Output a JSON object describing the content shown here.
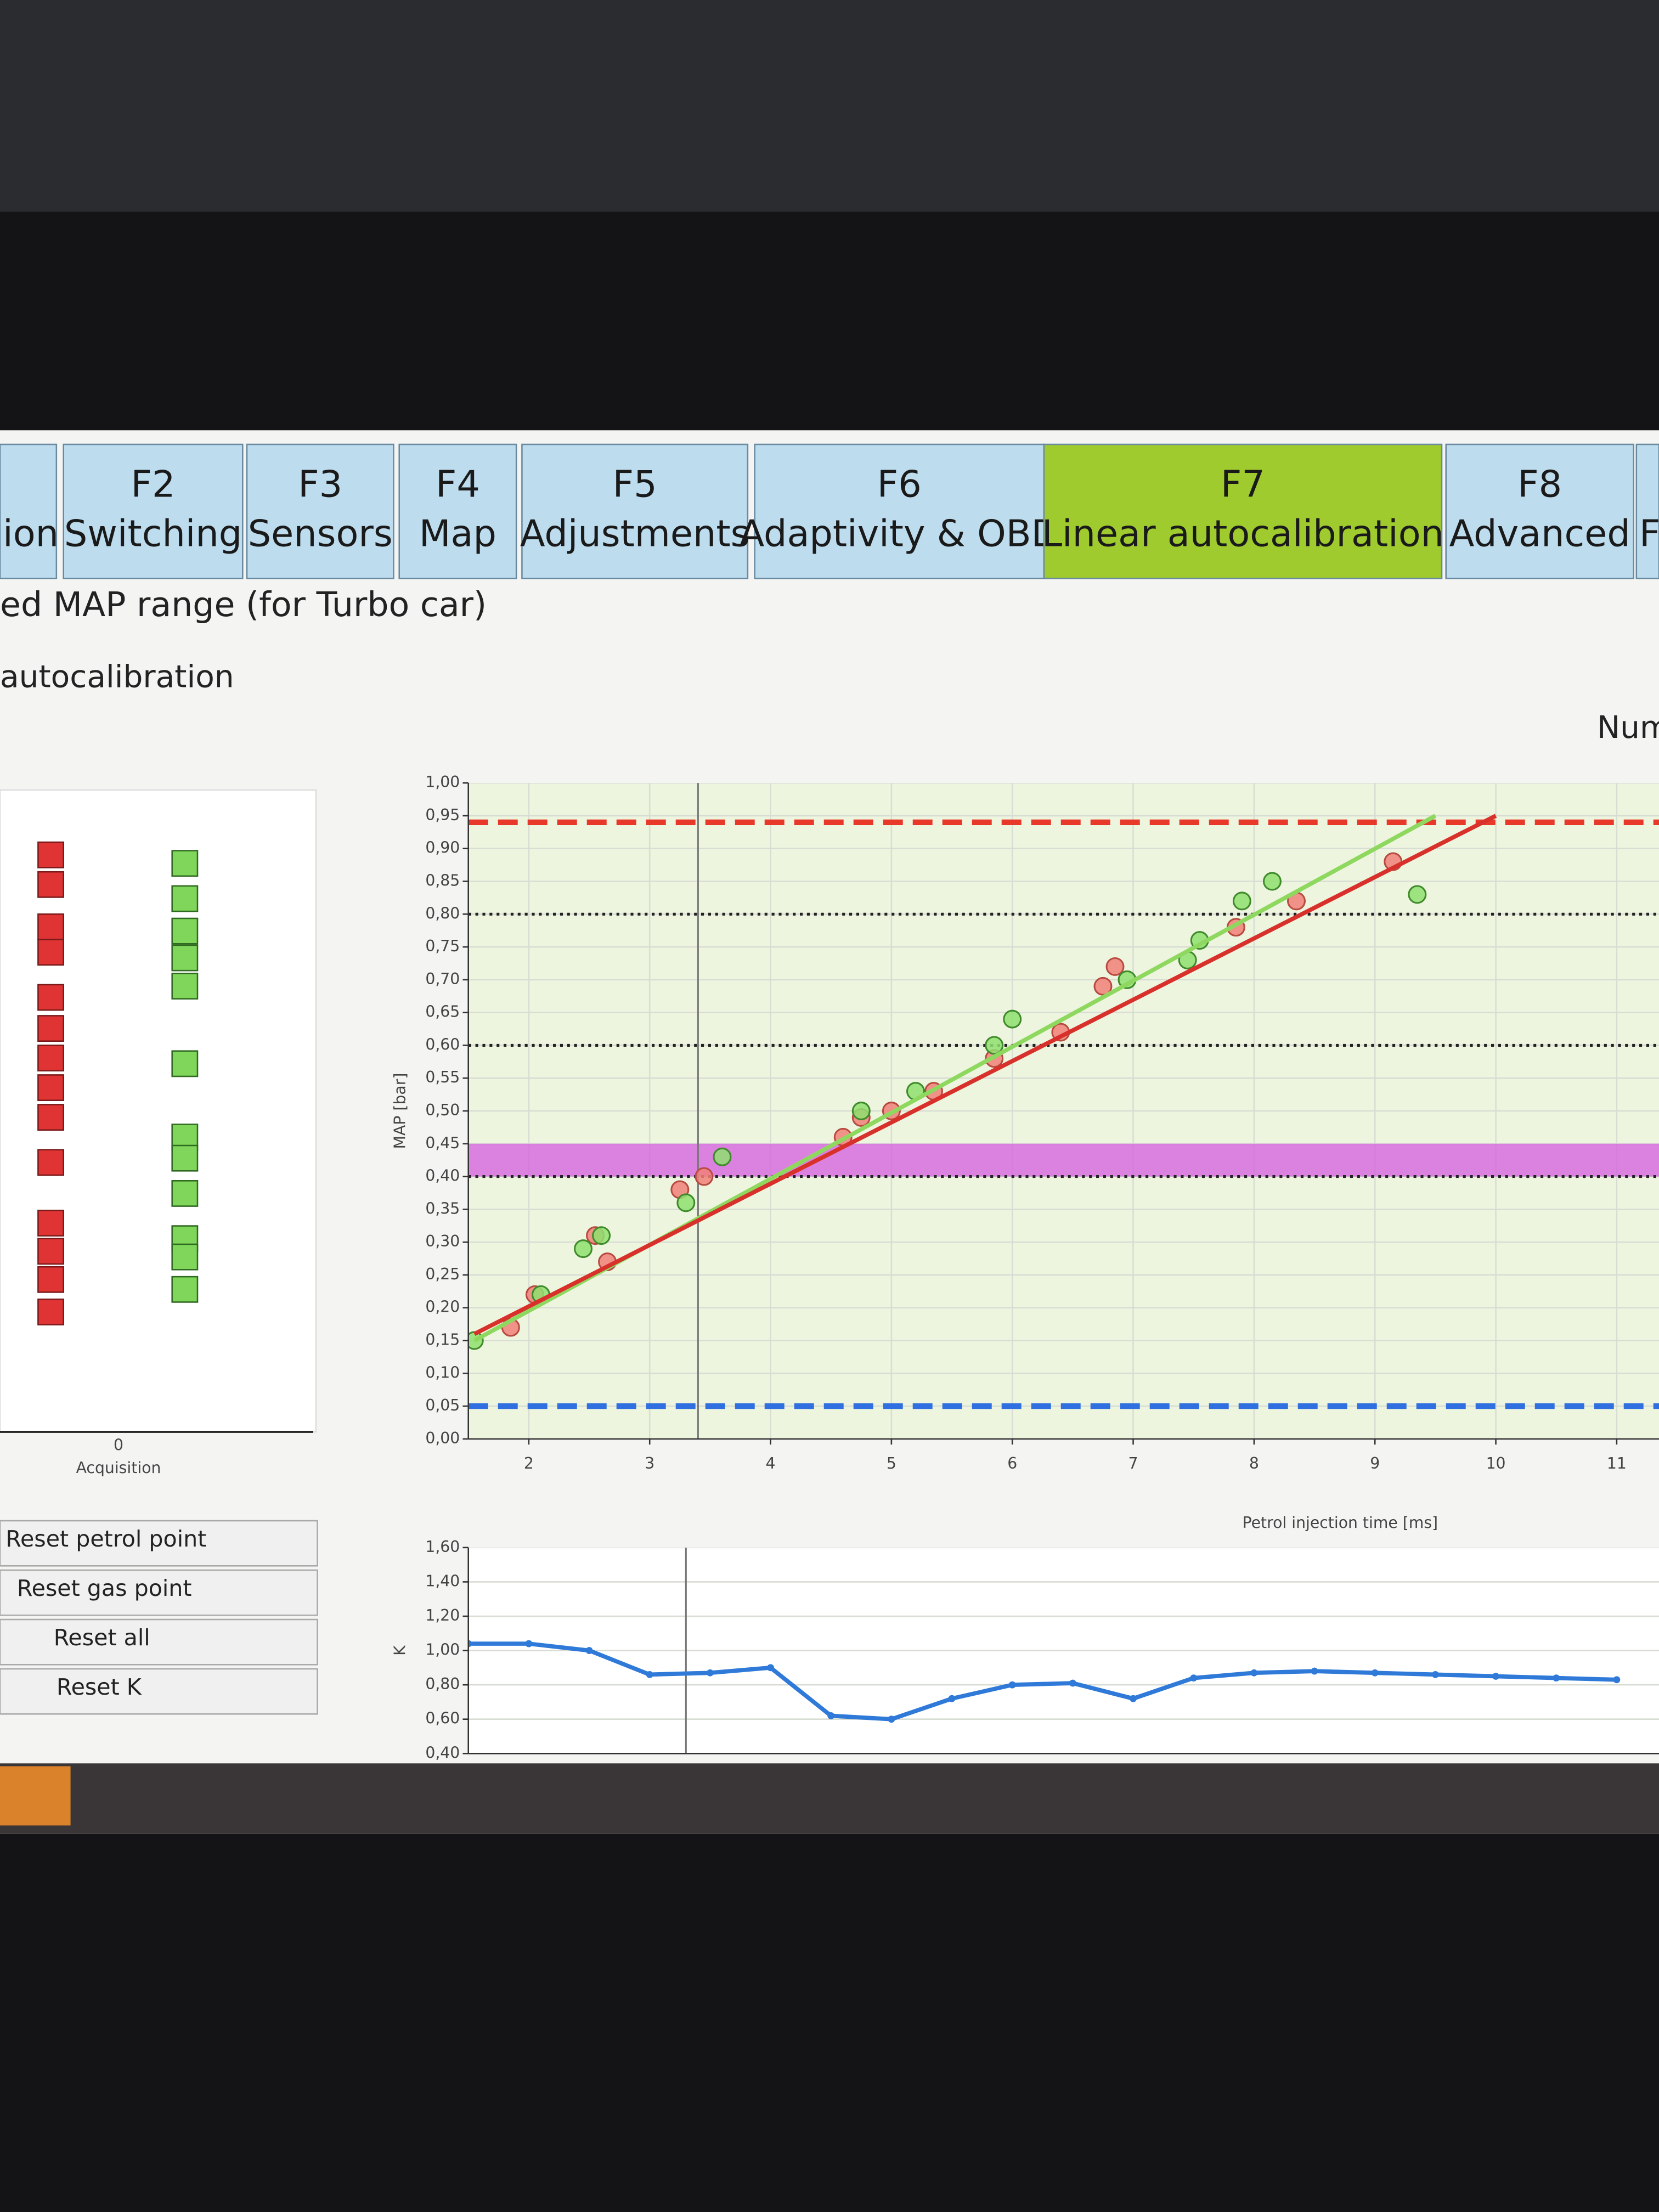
{
  "tabs": [
    {
      "label": "ion"
    },
    {
      "key": "F2",
      "label": "Switching"
    },
    {
      "key": "F3",
      "label": "Sensors"
    },
    {
      "key": "F4",
      "label": "Map"
    },
    {
      "key": "F5",
      "label": "Adjustments"
    },
    {
      "key": "F6",
      "label": "Adaptivity & OBD"
    },
    {
      "key": "F7",
      "label": "Linear autocalibration"
    },
    {
      "key": "F8",
      "label": "Advanced"
    },
    {
      "label": "F"
    }
  ],
  "section_title": "ed MAP range (for Turbo car)",
  "subsection_title": "autocalibration",
  "side_label": "Num",
  "acquisition": {
    "tick": 0,
    "label": "Acquisition"
  },
  "buttons": [
    "Reset petrol point",
    "Reset gas point",
    "Reset all",
    "Reset K"
  ],
  "chart_data": [
    {
      "type": "scatter",
      "x_label": "Petrol injection time [ms]",
      "y_label": "MAP [bar]",
      "xlim": [
        1.5,
        11.35
      ],
      "ylim": [
        0,
        1
      ],
      "xticks": [
        2,
        3,
        4,
        5,
        6,
        7,
        8,
        9,
        10,
        11
      ],
      "yticks": [
        {
          "value": 0,
          "label": "0,00"
        },
        {
          "value": 0.05,
          "label": "0,05"
        },
        {
          "value": 0.1,
          "label": "0,10"
        },
        {
          "value": 0.15,
          "label": "0,15"
        },
        {
          "value": 0.2,
          "label": "0,20"
        },
        {
          "value": 0.25,
          "label": "0,25"
        },
        {
          "value": 0.3,
          "label": "0,30"
        },
        {
          "value": 0.35,
          "label": "0,35"
        },
        {
          "value": 0.4,
          "label": "0,40"
        },
        {
          "value": 0.45,
          "label": "0,45"
        },
        {
          "value": 0.5,
          "label": "0,50"
        },
        {
          "value": 0.55,
          "label": "0,55"
        },
        {
          "value": 0.6,
          "label": "0,60"
        },
        {
          "value": 0.65,
          "label": "0,65"
        },
        {
          "value": 0.7,
          "label": "0,70"
        },
        {
          "value": 0.75,
          "label": "0,75"
        },
        {
          "value": 0.8,
          "label": "0,80"
        },
        {
          "value": 0.85,
          "label": "0,85"
        },
        {
          "value": 0.9,
          "label": "0,90"
        },
        {
          "value": 0.95,
          "label": "0,95"
        },
        {
          "value": 1,
          "label": "1,00"
        }
      ],
      "grid": true,
      "band": {
        "values": [
          0.4,
          0.45
        ],
        "color": "#d45be0"
      },
      "reference_lines": [
        {
          "value": 0.94,
          "color": "#e8382a",
          "style": "dashed"
        },
        {
          "value": 0.8,
          "color": "#222222",
          "style": "dotted"
        },
        {
          "value": 0.6,
          "color": "#222222",
          "style": "dotted"
        },
        {
          "value": 0.4,
          "color": "#222222",
          "style": "dotted"
        },
        {
          "value": 0.05,
          "color": "#2f6fe0",
          "style": "dashed"
        }
      ],
      "cursor_x": 3.4,
      "series": [
        {
          "mode": "points",
          "color": "#f08078",
          "x": [
            1.85,
            2.05,
            2.55,
            2.65,
            3.25,
            3.45,
            4.6,
            4.75,
            5.0,
            5.35,
            5.85,
            6.4,
            6.75,
            6.85,
            7.85,
            8.35,
            9.15
          ],
          "values": [
            0.17,
            0.22,
            0.31,
            0.27,
            0.38,
            0.4,
            0.46,
            0.49,
            0.5,
            0.53,
            0.58,
            0.62,
            0.69,
            0.72,
            0.78,
            0.82,
            0.88
          ]
        },
        {
          "mode": "points",
          "color": "#8ee070",
          "x": [
            1.55,
            2.1,
            2.45,
            2.6,
            3.3,
            3.6,
            4.75,
            5.2,
            5.85,
            6.0,
            6.95,
            7.45,
            7.55,
            7.9,
            8.15,
            9.35
          ],
          "values": [
            0.15,
            0.22,
            0.29,
            0.31,
            0.36,
            0.43,
            0.5,
            0.53,
            0.6,
            0.64,
            0.7,
            0.73,
            0.76,
            0.82,
            0.85,
            0.83
          ]
        },
        {
          "mode": "line",
          "color": "#8fd860",
          "x": [
            1.55,
            9.5
          ],
          "values": [
            0.15,
            0.95
          ]
        },
        {
          "mode": "line",
          "color": "#d8302a",
          "x": [
            1.55,
            10.0
          ],
          "values": [
            0.16,
            0.95
          ]
        }
      ]
    },
    {
      "type": "line",
      "y_label": "K",
      "xlim": [
        1.5,
        11.35
      ],
      "ylim": [
        0.4,
        1.6
      ],
      "yticks": [
        {
          "value": 0.4,
          "label": "0,40"
        },
        {
          "value": 0.6,
          "label": "0,60"
        },
        {
          "value": 0.8,
          "label": "0,80"
        },
        {
          "value": 1,
          "label": "1,00"
        },
        {
          "value": 1.2,
          "label": "1,20"
        },
        {
          "value": 1.4,
          "label": "1,40"
        },
        {
          "value": 1.6,
          "label": "1,60"
        }
      ],
      "grid": true,
      "cursor_x": 3.3,
      "color": "#2f7ad8",
      "x": [
        1.5,
        2.0,
        2.5,
        3.0,
        3.5,
        4.0,
        4.5,
        5.0,
        5.5,
        6.0,
        6.5,
        7.0,
        7.5,
        8.0,
        8.5,
        9.0,
        9.5,
        10.0,
        10.5,
        11.0
      ],
      "values": [
        1.04,
        1.04,
        1.0,
        0.86,
        0.87,
        0.9,
        0.62,
        0.6,
        0.72,
        0.8,
        0.81,
        0.72,
        0.84,
        0.87,
        0.88,
        0.87,
        0.86,
        0.85,
        0.84,
        0.83
      ]
    }
  ]
}
